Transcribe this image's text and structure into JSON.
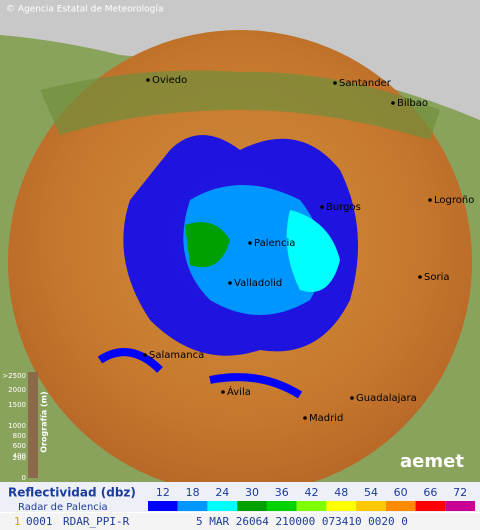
{
  "header": {
    "credit": "© Agencia Estatal de Meteorología"
  },
  "cities": [
    {
      "label": "Oviedo"
    },
    {
      "label": "Santander"
    },
    {
      "label": "Bilbao"
    },
    {
      "label": "Burgos"
    },
    {
      "label": "Logroño"
    },
    {
      "label": "Palencia"
    },
    {
      "label": "Valladolid"
    },
    {
      "label": "Soria"
    },
    {
      "label": "Salamanca"
    },
    {
      "label": "Ávila"
    },
    {
      "label": "Madrid"
    },
    {
      "label": "Guadalajara"
    }
  ],
  "orography": {
    "title": "Orografía (m)",
    "levels": [
      ">2500",
      "2000",
      "1500",
      "1000",
      "800",
      "600",
      "400",
      "200",
      "0"
    ]
  },
  "logo": "aemet",
  "legend": {
    "title": "Reflectividad (dbz)",
    "subtitle": "Radar de Palencia",
    "scale": [
      {
        "value": 12,
        "color": "#0000fe"
      },
      {
        "value": 18,
        "color": "#0096ff"
      },
      {
        "value": 24,
        "color": "#00ffff"
      },
      {
        "value": 30,
        "color": "#00a000"
      },
      {
        "value": 36,
        "color": "#00d200"
      },
      {
        "value": 42,
        "color": "#7dff00"
      },
      {
        "value": 48,
        "color": "#ffff00"
      },
      {
        "value": 54,
        "color": "#ffc800"
      },
      {
        "value": 60,
        "color": "#ff8c00"
      },
      {
        "value": 66,
        "color": "#ff0000"
      },
      {
        "value": 72,
        "color": "#c80096"
      }
    ]
  },
  "footer": {
    "fields": [
      "1",
      "0001",
      "RDAR_PPI-R",
      "5 MAR 26064 210000 073410 0020 0"
    ]
  }
}
